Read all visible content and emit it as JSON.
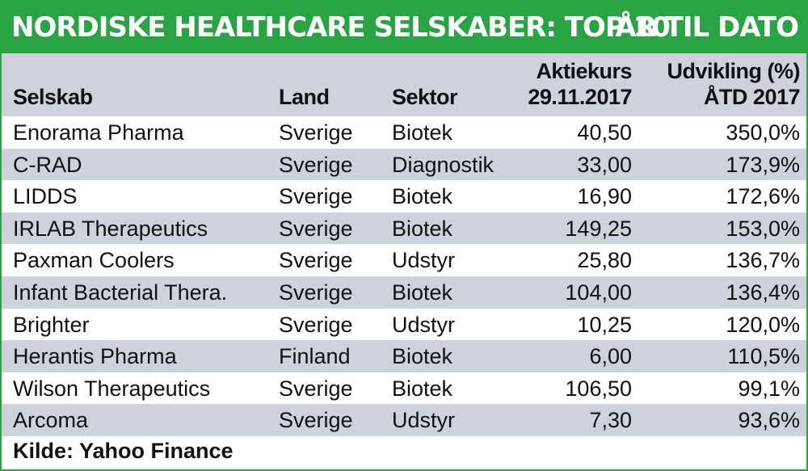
{
  "banner": {
    "title": "NORDISKE HEALTHCARE SELSKABER: TOP 10",
    "period": "ÅR TIL DATO"
  },
  "table": {
    "headers": {
      "company": "Selskab",
      "country": "Land",
      "sector": "Sektor",
      "price_line1": "Aktiekurs",
      "price_line2": "29.11.2017",
      "change_line1": "Udvikling (%)",
      "change_line2": "ÅTD 2017"
    },
    "rows": [
      {
        "company": "Enorama Pharma",
        "country": "Sverige",
        "sector": "Biotek",
        "price": "40,50",
        "change": "350,0%"
      },
      {
        "company": "C-RAD",
        "country": "Sverige",
        "sector": "Diagnostik",
        "price": "33,00",
        "change": "173,9%"
      },
      {
        "company": "LIDDS",
        "country": "Sverige",
        "sector": "Biotek",
        "price": "16,90",
        "change": "172,6%"
      },
      {
        "company": "IRLAB Therapeutics",
        "country": "Sverige",
        "sector": "Biotek",
        "price": "149,25",
        "change": "153,0%"
      },
      {
        "company": "Paxman Coolers",
        "country": "Sverige",
        "sector": "Udstyr",
        "price": "25,80",
        "change": "136,7%"
      },
      {
        "company": "Infant Bacterial Thera.",
        "country": "Sverige",
        "sector": "Biotek",
        "price": "104,00",
        "change": "136,4%"
      },
      {
        "company": "Brighter",
        "country": "Sverige",
        "sector": "Udstyr",
        "price": "10,25",
        "change": "120,0%"
      },
      {
        "company": "Herantis Pharma",
        "country": "Finland",
        "sector": "Biotek",
        "price": "6,00",
        "change": "110,5%"
      },
      {
        "company": "Wilson Therapeutics",
        "country": "Sverige",
        "sector": "Biotek",
        "price": "106,50",
        "change": "99,1%"
      },
      {
        "company": "Arcoma",
        "country": "Sverige",
        "sector": "Udstyr",
        "price": "7,30",
        "change": "93,6%"
      }
    ]
  },
  "source": "Kilde: Yahoo Finance",
  "colors": {
    "banner_green": "#2aa345",
    "stripe_grey": "#cfd1dd"
  }
}
